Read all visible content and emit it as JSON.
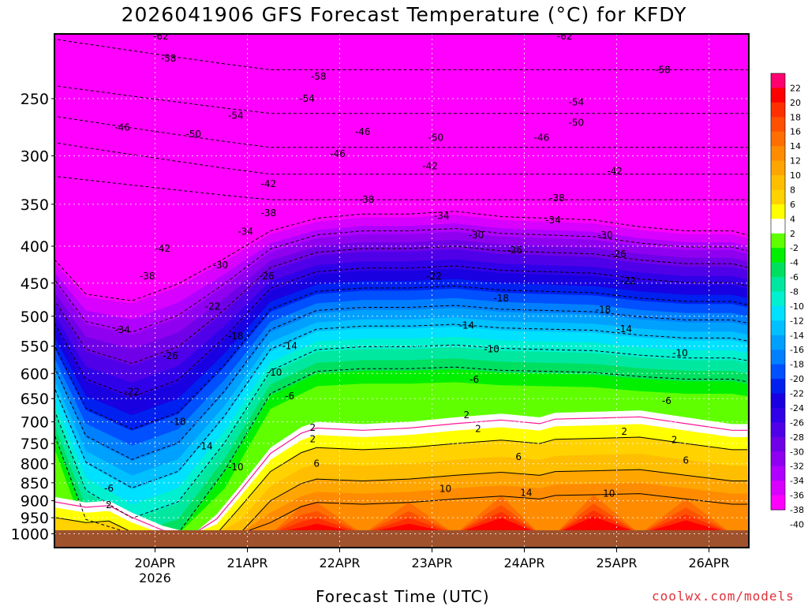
{
  "chart_data": {
    "type": "heatmap",
    "title": "2026041906 GFS Forecast Temperature (°C) for KFDY",
    "xlabel": "Forecast Time (UTC)",
    "credit": "coolwx.com/models",
    "x_ticks": [
      "20APR",
      "21APR",
      "22APR",
      "23APR",
      "24APR",
      "25APR",
      "26APR"
    ],
    "x_year": "2026",
    "y_ticks": [
      250,
      300,
      350,
      400,
      450,
      500,
      550,
      600,
      650,
      700,
      750,
      800,
      850,
      900,
      950,
      1000
    ],
    "y_range_hpa": [
      1000,
      200
    ],
    "grid": true,
    "colorbar_labels": [
      22,
      20,
      18,
      16,
      14,
      12,
      10,
      8,
      6,
      4,
      2,
      -2,
      -4,
      -6,
      -8,
      -10,
      -12,
      -14,
      -16,
      -18,
      -20,
      -22,
      -24,
      -26,
      -28,
      -30,
      -32,
      -34,
      -36,
      -38,
      -40
    ],
    "colorbar_colors": [
      "#ff0070",
      "#ff0000",
      "#ff3000",
      "#ff5000",
      "#ff6e00",
      "#ff8c00",
      "#ffa500",
      "#ffbe00",
      "#ffd200",
      "#ffff00",
      "#ffffff",
      "#60ff00",
      "#00f000",
      "#00e060",
      "#00e8a0",
      "#00f0d0",
      "#00e0ff",
      "#00c0ff",
      "#00a0ff",
      "#0080ff",
      "#0050ff",
      "#0020f0",
      "#1800e0",
      "#3000e8",
      "#5000e8",
      "#7000e8",
      "#9000f0",
      "#b000ff",
      "#d800ff",
      "#ff00ff"
    ],
    "contour_labels": [
      {
        "v": "-62",
        "t": 19.5,
        "p": 205
      },
      {
        "v": "-62",
        "t": 124.5,
        "p": 205
      },
      {
        "v": "-58",
        "t": 60.5,
        "p": 233
      },
      {
        "v": "-58",
        "t": 21.5,
        "p": 220
      },
      {
        "v": "-58",
        "t": 150,
        "p": 228
      },
      {
        "v": "-54",
        "t": 39,
        "p": 264
      },
      {
        "v": "-54",
        "t": 57.5,
        "p": 250
      },
      {
        "v": "-54",
        "t": 127.5,
        "p": 253
      },
      {
        "v": "-50",
        "t": 91,
        "p": 283
      },
      {
        "v": "-50",
        "t": 28,
        "p": 280
      },
      {
        "v": "-50",
        "t": 127.5,
        "p": 270
      },
      {
        "v": "-46",
        "t": 9.5,
        "p": 274
      },
      {
        "v": "-46",
        "t": 72,
        "p": 278
      },
      {
        "v": "-46",
        "t": 118.5,
        "p": 283
      },
      {
        "v": "-46",
        "t": 65.5,
        "p": 298
      },
      {
        "v": "-42",
        "t": 20,
        "p": 403
      },
      {
        "v": "-42",
        "t": 89.5,
        "p": 310
      },
      {
        "v": "-42",
        "t": 137.5,
        "p": 315
      },
      {
        "v": "-42",
        "t": 47.5,
        "p": 328
      },
      {
        "v": "-38",
        "t": 16,
        "p": 440
      },
      {
        "v": "-38",
        "t": 73,
        "p": 345
      },
      {
        "v": "-38",
        "t": 122.5,
        "p": 343
      },
      {
        "v": "-38",
        "t": 47.5,
        "p": 360
      },
      {
        "v": "-34",
        "t": 9.5,
        "p": 522
      },
      {
        "v": "-34",
        "t": 41.5,
        "p": 382
      },
      {
        "v": "-34",
        "t": 92.5,
        "p": 363
      },
      {
        "v": "-34",
        "t": 121.5,
        "p": 368
      },
      {
        "v": "-30",
        "t": 35,
        "p": 425
      },
      {
        "v": "-30",
        "t": 101.5,
        "p": 386
      },
      {
        "v": "-30",
        "t": 135,
        "p": 386
      },
      {
        "v": "-26",
        "t": 22,
        "p": 567
      },
      {
        "v": "-26",
        "t": 47,
        "p": 440
      },
      {
        "v": "-26",
        "t": 111.5,
        "p": 405
      },
      {
        "v": "-26",
        "t": 138.5,
        "p": 410
      },
      {
        "v": "-22",
        "t": 12,
        "p": 636
      },
      {
        "v": "-22",
        "t": 33,
        "p": 485
      },
      {
        "v": "-22",
        "t": 90.5,
        "p": 440
      },
      {
        "v": "-22",
        "t": 141,
        "p": 447
      },
      {
        "v": "-18",
        "t": 24,
        "p": 700
      },
      {
        "v": "-18",
        "t": 39,
        "p": 533
      },
      {
        "v": "-18",
        "t": 108,
        "p": 472
      },
      {
        "v": "-18",
        "t": 134.5,
        "p": 490
      },
      {
        "v": "-14",
        "t": 31,
        "p": 757
      },
      {
        "v": "-14",
        "t": 53,
        "p": 550
      },
      {
        "v": "-14",
        "t": 99,
        "p": 515
      },
      {
        "v": "-14",
        "t": 140,
        "p": 521
      },
      {
        "v": "-10",
        "t": 39,
        "p": 809
      },
      {
        "v": "-10",
        "t": 49,
        "p": 598
      },
      {
        "v": "-10",
        "t": 105.5,
        "p": 555
      },
      {
        "v": "-10",
        "t": 154.5,
        "p": 562
      },
      {
        "v": "-6",
        "t": 6,
        "p": 865
      },
      {
        "v": "-6",
        "t": 53,
        "p": 645
      },
      {
        "v": "-6",
        "t": 101,
        "p": 612
      },
      {
        "v": "-6",
        "t": 151,
        "p": 655
      },
      {
        "v": "2",
        "t": 6,
        "p": 912
      },
      {
        "v": "2",
        "t": 59,
        "p": 713
      },
      {
        "v": "2",
        "t": 59,
        "p": 740
      },
      {
        "v": "2",
        "t": 99,
        "p": 685
      },
      {
        "v": "2",
        "t": 102,
        "p": 716
      },
      {
        "v": "2",
        "t": 140,
        "p": 722
      },
      {
        "v": "2",
        "t": 153,
        "p": 741
      },
      {
        "v": "6",
        "t": 60,
        "p": 800
      },
      {
        "v": "6",
        "t": 112.5,
        "p": 783
      },
      {
        "v": "6",
        "t": 156,
        "p": 792
      },
      {
        "v": "10",
        "t": 93.5,
        "p": 867
      },
      {
        "v": "10",
        "t": 136,
        "p": 880
      },
      {
        "v": "14",
        "t": 114.5,
        "p": 878
      }
    ]
  }
}
